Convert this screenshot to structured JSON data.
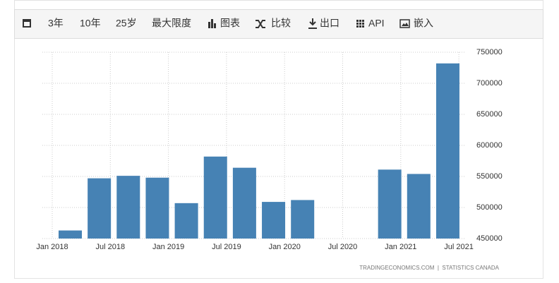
{
  "toolbar": [
    "3年",
    "10年",
    "25岁",
    "最大限度",
    "图表",
    "比较",
    "出口",
    "API",
    "嵌入"
  ],
  "chart_data": {
    "type": "bar",
    "color": "#4682b4",
    "x_labels": [
      "Jan 2018",
      "Jul 2018",
      "Jan 2019",
      "Jul 2019",
      "Jan 2020",
      "Jul 2020",
      "Jan 2021",
      "Jul 2021"
    ],
    "values": [
      463000,
      547000,
      551000,
      548000,
      507000,
      582000,
      564000,
      509000,
      512000,
      null,
      null,
      561000,
      554000,
      732000
    ],
    "ylim": [
      450000,
      750000
    ],
    "yticks": [
      450000,
      500000,
      550000,
      600000,
      650000,
      700000,
      750000
    ],
    "grid": true,
    "source": "TRADINGECONOMICS.COM  |  STATISTICS CANADA"
  }
}
